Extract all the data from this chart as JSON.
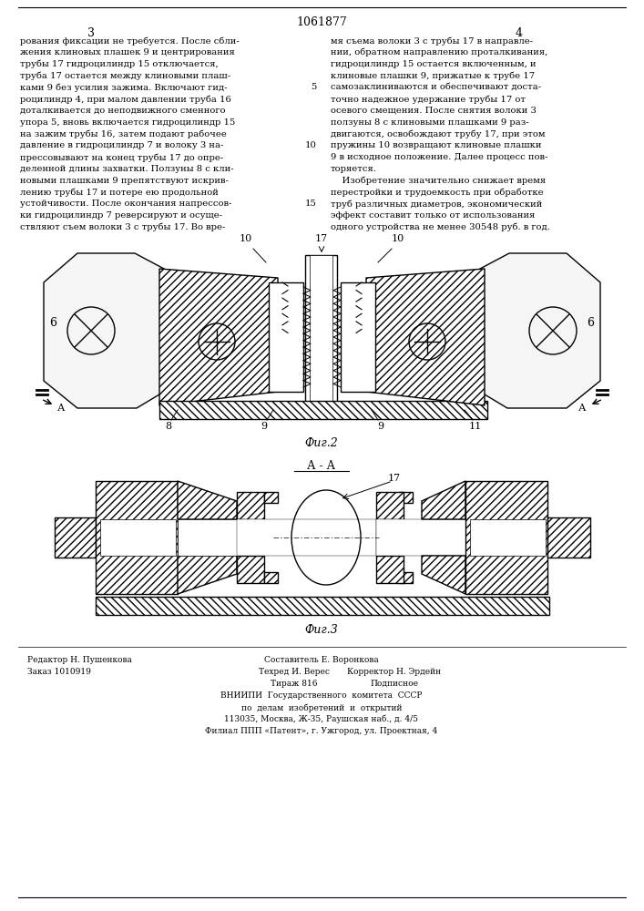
{
  "patent_number": "1061877",
  "page_numbers": [
    "3",
    "4"
  ],
  "bg_color": "#ffffff",
  "text_color": "#000000",
  "col1_text": "рования фиксации не требуется. После сбли-\nжения клиновых плашек 9 и центрирования\nтрубы 17 гидроцилиндр 15 отключается,\nтруба 17 остается между клиновыми плаш-\nками 9 без усилия зажима. Включают гид-\nроцилиндр 4, при малом давлении труба 16\nдоталкивается до неподвижного сменного\nупора 5, вновь включается гидроцилиндр 15\nна зажим трубы 16, затем подают рабочее\nдавление в гидроцилиндр 7 и волоку 3 на-\nпрессовывают на конец трубы 17 до опре-\nделенной длины захватки. Ползуны 8 с кли-\nновыми плашками 9 препятствуют искрив-\nлению трубы 17 и потере ею продольной\nустойчивости. После окончания напрессов-\nки гидроцилиндр 7 реверсируют и осуще-\nствляют съем волоки 3 с трубы 17. Во вре-",
  "col2_text": "мя съема волоки 3 с трубы 17 в направле-\nнии, обратном направлению проталкивания,\nгидроцилиндр 15 остается включенным, и\nклиновые плашки 9, прижатые к трубе 17\nсамозаклиниваются и обеспечивают доста-\nточно надежное удержание трубы 17 от\nосевого смещения. После снятия волоки 3\nползуны 8 с клиновыми плашками 9 раз-\nдвигаются, освобождают трубу 17, при этом\nпружины 10 возвращают клиновые плашки\n9 в исходное положение. Далее процесс пов-\nторяется.\n    Изобретение значительно снижает время\nперестройки и трудоемкость при обработке\nтруб различных диаметров, экономический\nэффект составит только от использования\nодного устройства не менее 30548 руб. в год.",
  "fig2_label": "Фиг.2",
  "fig3_label": "Фиг.3",
  "section_label": "А - А",
  "footer_left": "Редактор Н. Пушенкова\nЗаказ 1010919",
  "footer_center_line1": "Составитель Е. Воронкова",
  "footer_center_line2": "Техред И. Верес",
  "footer_center_line2r": "Корректор Н. Эрдейн",
  "footer_center_line3": "Тираж 816",
  "footer_center_line3r": "Подписное",
  "footer_center_line4": "ВНИИПИ  Государственного  комитета  СССР",
  "footer_center_line5": "по  делам  изобретений  и  открытий",
  "footer_center_line6": "113035, Москва, Ж-35, Раушская наб., д. 4/5",
  "footer_center_line7": "Филиал ППП «Патент», г. Ужгород, ул. Проектная, 4"
}
